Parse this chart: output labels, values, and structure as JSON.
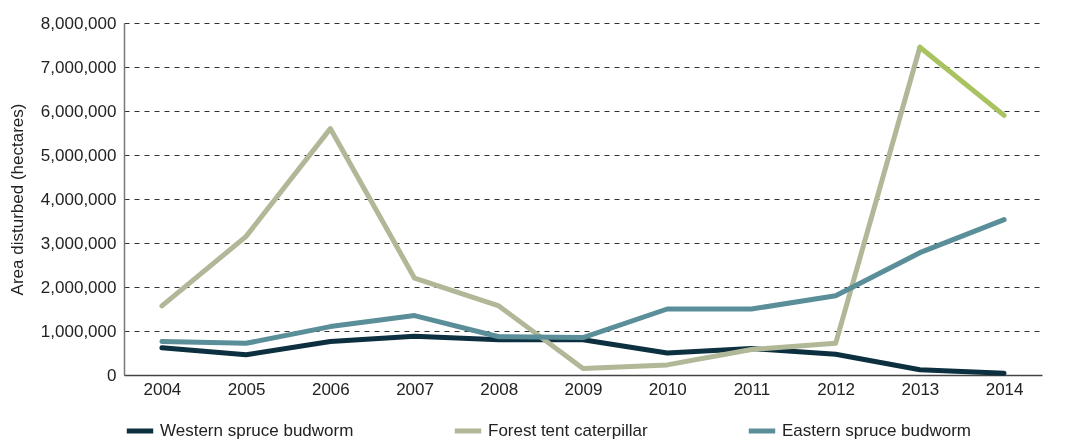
{
  "chart_data": {
    "type": "line",
    "ylabel": "Area disturbed (hectares)",
    "categories": [
      "2004",
      "2005",
      "2006",
      "2007",
      "2008",
      "2009",
      "2010",
      "2011",
      "2012",
      "2013",
      "2014"
    ],
    "series": [
      {
        "name": "Western spruce budworm",
        "color": "#0d3040",
        "values": [
          620000,
          460000,
          760000,
          880000,
          800000,
          800000,
          500000,
          600000,
          470000,
          120000,
          40000
        ]
      },
      {
        "name": "Forest tent caterpillar",
        "color": "#b0b898",
        "values": [
          1570000,
          3150000,
          5600000,
          2200000,
          1570000,
          150000,
          230000,
          580000,
          720000,
          7450000,
          null
        ]
      },
      {
        "name": "Eastern spruce budworm",
        "color": "#5a8e99",
        "values": [
          760000,
          720000,
          1100000,
          1350000,
          870000,
          850000,
          1500000,
          1500000,
          1800000,
          2780000,
          3530000
        ]
      },
      {
        "color": "#a8c360",
        "values": [
          null,
          null,
          null,
          null,
          null,
          null,
          null,
          null,
          null,
          7450000,
          5900000
        ]
      }
    ],
    "ylim": [
      0,
      8000000
    ],
    "yticks": [
      0,
      {
        "value": 1000000,
        "label": "1,000,000"
      },
      {
        "value": 2000000,
        "label": "2,000,000"
      },
      {
        "value": 3000000,
        "label": "3,000,000"
      },
      {
        "value": 4000000,
        "label": "4,000,000"
      },
      {
        "value": 5000000,
        "label": "5,000,000"
      },
      {
        "value": 6000000,
        "label": "6,000,000"
      },
      {
        "value": 7000000,
        "label": "7,000,000"
      },
      {
        "value": 8000000,
        "label": "8,000,000"
      }
    ],
    "grid": "y",
    "legend": "bottom",
    "line_style": "solid",
    "marker": "none"
  }
}
